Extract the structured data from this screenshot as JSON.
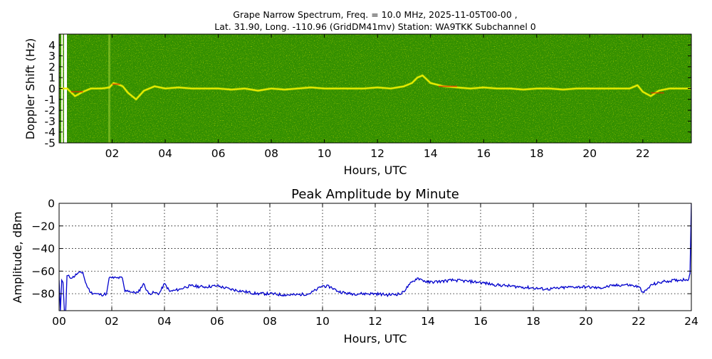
{
  "figure": {
    "title_line1": "Grape Narrow Spectrum, Freq. = 10.0 MHz, 2025-11-05T00-00 ,",
    "title_line2": "Lat.  31.90, Long. -110.96 (GridDM41mv) Station: WA9TKK Subchannel 0"
  },
  "colors": {
    "spectrum_background": "#2f8a00",
    "spectrum_signal": "#f0f000",
    "spectrum_peak": "#e03000",
    "amplitude_line": "#0000cc"
  },
  "chart_data": [
    {
      "type": "heatmap",
      "title": "",
      "xlabel": "Hours, UTC",
      "ylabel": "Doppler Shift (Hz)",
      "xlim": [
        0,
        23.83
      ],
      "ylim": [
        -5,
        5
      ],
      "x_ticks": [
        "02",
        "04",
        "06",
        "08",
        "10",
        "12",
        "14",
        "16",
        "18",
        "20",
        "22"
      ],
      "x_tick_values": [
        2,
        4,
        6,
        8,
        10,
        12,
        14,
        16,
        18,
        20,
        22
      ],
      "y_ticks": [
        "4",
        "3",
        "2",
        "1",
        "0",
        "-1",
        "-2",
        "-3",
        "-4",
        "-5"
      ],
      "y_tick_values": [
        4,
        3,
        2,
        1,
        0,
        -1,
        -2,
        -3,
        -4,
        -5
      ],
      "signal_trace": {
        "x": [
          0.05,
          0.3,
          0.6,
          0.9,
          1.2,
          1.6,
          1.9,
          2.05,
          2.2,
          2.4,
          2.6,
          2.9,
          3.2,
          3.6,
          4.0,
          4.5,
          5.0,
          5.5,
          6.0,
          6.5,
          7.0,
          7.5,
          8.0,
          8.5,
          9.0,
          9.5,
          10.0,
          10.5,
          11.0,
          11.5,
          12.0,
          12.5,
          13.0,
          13.3,
          13.5,
          13.7,
          14.0,
          14.5,
          15.0,
          15.5,
          16.0,
          16.5,
          17.0,
          17.5,
          18.0,
          18.5,
          19.0,
          19.5,
          20.0,
          20.5,
          21.0,
          21.5,
          21.8,
          22.0,
          22.3,
          22.6,
          23.0,
          23.4,
          23.8
        ],
        "y": [
          0,
          0,
          -0.7,
          -0.3,
          0,
          0,
          0.1,
          0.5,
          0.4,
          0.2,
          -0.4,
          -1.0,
          -0.2,
          0.2,
          0,
          0.1,
          0,
          0,
          0,
          -0.1,
          0,
          -0.2,
          0,
          -0.1,
          0,
          0.1,
          0,
          0,
          0,
          0,
          0.1,
          0,
          0.2,
          0.5,
          1.0,
          1.2,
          0.5,
          0.2,
          0.1,
          0,
          0.1,
          0,
          0,
          -0.1,
          0,
          0,
          -0.1,
          0,
          0,
          0,
          0,
          0,
          0.3,
          -0.3,
          -0.7,
          -0.2,
          0,
          0,
          0
        ]
      }
    },
    {
      "type": "line",
      "title": "Peak Amplitude by Minute",
      "xlabel": "Hours, UTC",
      "ylabel": "Amplitude, dBm",
      "xlim": [
        0,
        24
      ],
      "ylim": [
        -95,
        0
      ],
      "grid": true,
      "x_ticks": [
        "00",
        "02",
        "04",
        "06",
        "08",
        "10",
        "12",
        "14",
        "16",
        "18",
        "20",
        "22",
        "24"
      ],
      "x_tick_values": [
        0,
        2,
        4,
        6,
        8,
        10,
        12,
        14,
        16,
        18,
        20,
        22,
        24
      ],
      "y_ticks": [
        "0",
        "−20",
        "−40",
        "−60",
        "−80"
      ],
      "y_tick_values": [
        0,
        -20,
        -40,
        -60,
        -80
      ],
      "series": [
        {
          "x": [
            0,
            0.05,
            0.1,
            0.15,
            0.2,
            0.25,
            0.3,
            0.5,
            0.7,
            0.9,
            1.0,
            1.1,
            1.2,
            1.4,
            1.6,
            1.8,
            1.9,
            2.0,
            2.2,
            2.4,
            2.5,
            2.6,
            2.8,
            3.0,
            3.2,
            3.4,
            3.6,
            3.8,
            4.0,
            4.2,
            4.4,
            4.6,
            4.8,
            5.0,
            5.5,
            6.0,
            6.5,
            7.0,
            7.5,
            8.0,
            8.5,
            9.0,
            9.5,
            9.8,
            10.0,
            10.3,
            10.6,
            11.0,
            11.5,
            12.0,
            12.5,
            13.0,
            13.3,
            13.6,
            13.8,
            14.0,
            14.5,
            15.0,
            15.5,
            16.0,
            16.5,
            17.0,
            17.5,
            18.0,
            18.5,
            19.0,
            19.5,
            20.0,
            20.5,
            21.0,
            21.5,
            21.8,
            22.0,
            22.2,
            22.5,
            23.0,
            23.5,
            23.9,
            23.95,
            24.0
          ],
          "y": [
            -68,
            -95,
            -68,
            -70,
            -95,
            -95,
            -64,
            -66,
            -62,
            -61,
            -70,
            -75,
            -79,
            -80,
            -81,
            -80,
            -66,
            -66,
            -66,
            -66,
            -78,
            -77,
            -79,
            -79,
            -71,
            -80,
            -79,
            -80,
            -71,
            -78,
            -77,
            -76,
            -74,
            -73,
            -74,
            -73,
            -76,
            -78,
            -80,
            -80,
            -81,
            -81,
            -80,
            -76,
            -73,
            -74,
            -78,
            -80,
            -80,
            -80,
            -81,
            -80,
            -72,
            -66,
            -68,
            -70,
            -69,
            -68,
            -69,
            -70,
            -72,
            -73,
            -74,
            -75,
            -76,
            -75,
            -74,
            -74,
            -75,
            -73,
            -72,
            -73,
            -74,
            -79,
            -72,
            -69,
            -68,
            -67,
            -62,
            0
          ]
        }
      ]
    }
  ]
}
